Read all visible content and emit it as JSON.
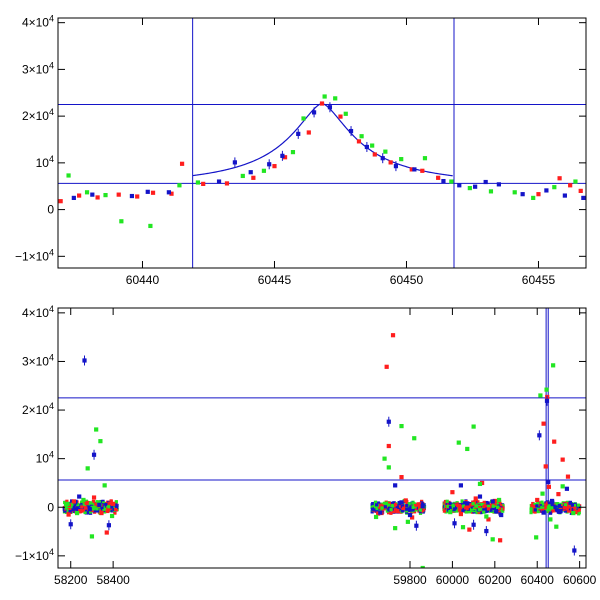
{
  "chart_data": [
    {
      "type": "scatter",
      "title": "",
      "xlabel": "",
      "ylabel": "",
      "xlim": [
        60436.8,
        60456.8
      ],
      "ylim": [
        -12500,
        41000
      ],
      "grid": false,
      "x_ticks": [
        60440,
        60445,
        60450,
        60455
      ],
      "x_tick_labels": [
        "60440",
        "60445",
        "60450",
        "60455"
      ],
      "y_ticks": [
        -10000,
        0,
        10000,
        20000,
        30000,
        40000
      ],
      "y_tick_labels": [
        {
          "base": "−1×10",
          "exp": "4"
        },
        {
          "base": "0",
          "exp": ""
        },
        {
          "base": "10",
          "exp": "4"
        },
        {
          "base": "2×10",
          "exp": "4"
        },
        {
          "base": "3×10",
          "exp": "4"
        },
        {
          "base": "4×10",
          "exp": "4"
        }
      ],
      "reference_lines": {
        "vertical": [
          60441.9,
          60451.8
        ],
        "horizontal": [
          5600,
          22500
        ]
      },
      "model_curve": {
        "peak_x": 60446.8,
        "peak_y": 22700,
        "baseline": 4700,
        "color": "#1414c8"
      },
      "series": [
        {
          "color": "#ff1e1e",
          "points": [
            [
              60436.9,
              1800
            ],
            [
              60437.6,
              3000
            ],
            [
              60438.3,
              2600
            ],
            [
              60439.1,
              3200
            ],
            [
              60439.8,
              2800
            ],
            [
              60440.4,
              3600
            ],
            [
              60441.1,
              3400
            ],
            [
              60441.5,
              9800
            ],
            [
              60442.3,
              5500
            ],
            [
              60443.2,
              5600
            ],
            [
              60444.2,
              6800
            ],
            [
              60445.0,
              9300
            ],
            [
              60445.4,
              11200
            ],
            [
              60446.3,
              16500
            ],
            [
              60446.8,
              22700
            ],
            [
              60447.5,
              19900
            ],
            [
              60448.2,
              14600
            ],
            [
              60448.8,
              11800
            ],
            [
              60449.4,
              10100
            ],
            [
              60450.2,
              8600
            ],
            [
              60450.6,
              8300
            ],
            [
              60451.2,
              6800
            ],
            [
              60455.0,
              3300
            ],
            [
              60455.8,
              6700
            ],
            [
              60456.2,
              5200
            ],
            [
              60456.6,
              4000
            ]
          ]
        },
        {
          "color": "#22e622",
          "points": [
            [
              60437.2,
              7300
            ],
            [
              60437.9,
              3700
            ],
            [
              60438.6,
              3100
            ],
            [
              60439.2,
              -2500
            ],
            [
              60440.3,
              -3500
            ],
            [
              60441.4,
              5200
            ],
            [
              60442.1,
              5800
            ],
            [
              60443.8,
              7200
            ],
            [
              60444.6,
              8300
            ],
            [
              60445.7,
              12300
            ],
            [
              60446.1,
              19500
            ],
            [
              60446.9,
              24200
            ],
            [
              60447.3,
              23800
            ],
            [
              60447.7,
              20500
            ],
            [
              60448.3,
              15700
            ],
            [
              60448.7,
              13700
            ],
            [
              60449.2,
              12400
            ],
            [
              60449.8,
              10800
            ],
            [
              60450.7,
              11000
            ],
            [
              60451.7,
              6000
            ],
            [
              60452.4,
              4600
            ],
            [
              60453.2,
              3900
            ],
            [
              60454.1,
              3700
            ],
            [
              60454.8,
              2500
            ],
            [
              60455.6,
              4800
            ],
            [
              60456.4,
              6000
            ]
          ]
        },
        {
          "color": "#1414c8",
          "points": [
            [
              60437.4,
              2500
            ],
            [
              60438.1,
              3200
            ],
            [
              60439.6,
              2900
            ],
            [
              60440.2,
              3800
            ],
            [
              60441.0,
              3700
            ],
            [
              60442.9,
              6000
            ],
            [
              60443.5,
              10100
            ],
            [
              60444.1,
              8000
            ],
            [
              60444.8,
              9700
            ],
            [
              60445.3,
              11500
            ],
            [
              60445.9,
              16200
            ],
            [
              60446.5,
              20800
            ],
            [
              60447.1,
              21900
            ],
            [
              60447.9,
              16800
            ],
            [
              60448.5,
              13400
            ],
            [
              60449.1,
              11000
            ],
            [
              60449.6,
              9300
            ],
            [
              60450.3,
              8600
            ],
            [
              60451.4,
              6100
            ],
            [
              60452.0,
              5200
            ],
            [
              60452.6,
              4900
            ],
            [
              60453.0,
              5900
            ],
            [
              60453.5,
              5400
            ],
            [
              60454.4,
              3300
            ],
            [
              60455.3,
              4100
            ],
            [
              60456.0,
              3000
            ],
            [
              60456.7,
              2500
            ]
          ]
        }
      ]
    },
    {
      "type": "scatter",
      "title": "",
      "xlabel": "",
      "ylabel": "",
      "xlim": [
        58140,
        60630
      ],
      "ylim": [
        -12500,
        41000
      ],
      "grid": false,
      "x_ticks": [
        58200,
        58400,
        59800,
        60000,
        60200,
        60400,
        60600
      ],
      "x_tick_labels": [
        "58200",
        "58400",
        "59800",
        "60000",
        "60200",
        "60400",
        "60600"
      ],
      "y_ticks": [
        -10000,
        0,
        10000,
        20000,
        30000,
        40000
      ],
      "y_tick_labels": [
        {
          "base": "−1×10",
          "exp": "4"
        },
        {
          "base": "0",
          "exp": ""
        },
        {
          "base": "10",
          "exp": "4"
        },
        {
          "base": "2×10",
          "exp": "4"
        },
        {
          "base": "3×10",
          "exp": "4"
        },
        {
          "base": "4×10",
          "exp": "4"
        }
      ],
      "reference_lines": {
        "vertical": [
          60441.9,
          60451.8
        ],
        "horizontal": [
          5600,
          22500
        ]
      },
      "seasons": [
        [
          58170,
          58420
        ],
        [
          59620,
          59870
        ],
        [
          59960,
          60240
        ],
        [
          60370,
          60600
        ]
      ],
      "series": [
        {
          "color": "#ff1e1e",
          "points": [
            [
              58190,
              -1500
            ],
            [
              58215,
              1200
            ],
            [
              58245,
              -800
            ],
            [
              58275,
              900
            ],
            [
              58310,
              2000
            ],
            [
              58345,
              -1200
            ],
            [
              58370,
              -5200
            ],
            [
              58400,
              700
            ],
            [
              59650,
              -1300
            ],
            [
              59690,
              28900
            ],
            [
              59700,
              12600
            ],
            [
              59720,
              35400
            ],
            [
              59740,
              -800
            ],
            [
              59760,
              6200
            ],
            [
              59780,
              1400
            ],
            [
              59810,
              -2100
            ],
            [
              59840,
              600
            ],
            [
              60000,
              3100
            ],
            [
              60040,
              -1400
            ],
            [
              60080,
              -4600
            ],
            [
              60110,
              1800
            ],
            [
              60140,
              5000
            ],
            [
              60170,
              -2500
            ],
            [
              60200,
              1300
            ],
            [
              60225,
              -6800
            ],
            [
              60400,
              1500
            ],
            [
              60430,
              17200
            ],
            [
              60440,
              8400
            ],
            [
              60447,
              22700
            ],
            [
              60455,
              4200
            ],
            [
              60480,
              13500
            ],
            [
              60500,
              2700
            ],
            [
              60520,
              9800
            ],
            [
              60545,
              6300
            ],
            [
              60580,
              -1000
            ]
          ]
        },
        {
          "color": "#22e622",
          "points": [
            [
              58185,
              700
            ],
            [
              58230,
              -1200
            ],
            [
              58260,
              1500
            ],
            [
              58280,
              8000
            ],
            [
              58300,
              -6000
            ],
            [
              58320,
              16000
            ],
            [
              58340,
              13600
            ],
            [
              58360,
              4500
            ],
            [
              58395,
              -1800
            ],
            [
              59640,
              -2000
            ],
            [
              59680,
              10000
            ],
            [
              59700,
              8200
            ],
            [
              59730,
              -4300
            ],
            [
              59760,
              16700
            ],
            [
              59790,
              -3000
            ],
            [
              59820,
              14200
            ],
            [
              59860,
              -12500
            ],
            [
              59990,
              -1000
            ],
            [
              60030,
              13300
            ],
            [
              60050,
              -4100
            ],
            [
              60070,
              12000
            ],
            [
              60100,
              16600
            ],
            [
              60130,
              4800
            ],
            [
              60160,
              -1900
            ],
            [
              60190,
              -6600
            ],
            [
              60220,
              1500
            ],
            [
              60395,
              -6200
            ],
            [
              60415,
              23000
            ],
            [
              60425,
              2800
            ],
            [
              60444,
              24200
            ],
            [
              60462,
              -2500
            ],
            [
              60475,
              29200
            ],
            [
              60490,
              -4000
            ],
            [
              60520,
              4300
            ],
            [
              60570,
              -1200
            ]
          ]
        },
        {
          "color": "#1414c8",
          "points": [
            [
              58200,
              -3500
            ],
            [
              58240,
              2200
            ],
            [
              58265,
              30200
            ],
            [
              58290,
              -400
            ],
            [
              58310,
              10800
            ],
            [
              58335,
              500
            ],
            [
              58380,
              -3700
            ],
            [
              59660,
              -1100
            ],
            [
              59700,
              17600
            ],
            [
              59730,
              4500
            ],
            [
              59760,
              1000
            ],
            [
              59800,
              -1600
            ],
            [
              59830,
              -3800
            ],
            [
              59860,
              200
            ],
            [
              60010,
              -3300
            ],
            [
              60040,
              4500
            ],
            [
              60070,
              800
            ],
            [
              60100,
              -3600
            ],
            [
              60130,
              2200
            ],
            [
              60160,
              -4900
            ],
            [
              60190,
              1200
            ],
            [
              60230,
              -1600
            ],
            [
              60410,
              14800
            ],
            [
              60430,
              -1100
            ],
            [
              60446,
              21900
            ],
            [
              60452,
              5200
            ],
            [
              60470,
              1300
            ],
            [
              60510,
              -800
            ],
            [
              60540,
              3800
            ],
            [
              60575,
              -8900
            ]
          ]
        }
      ]
    }
  ]
}
